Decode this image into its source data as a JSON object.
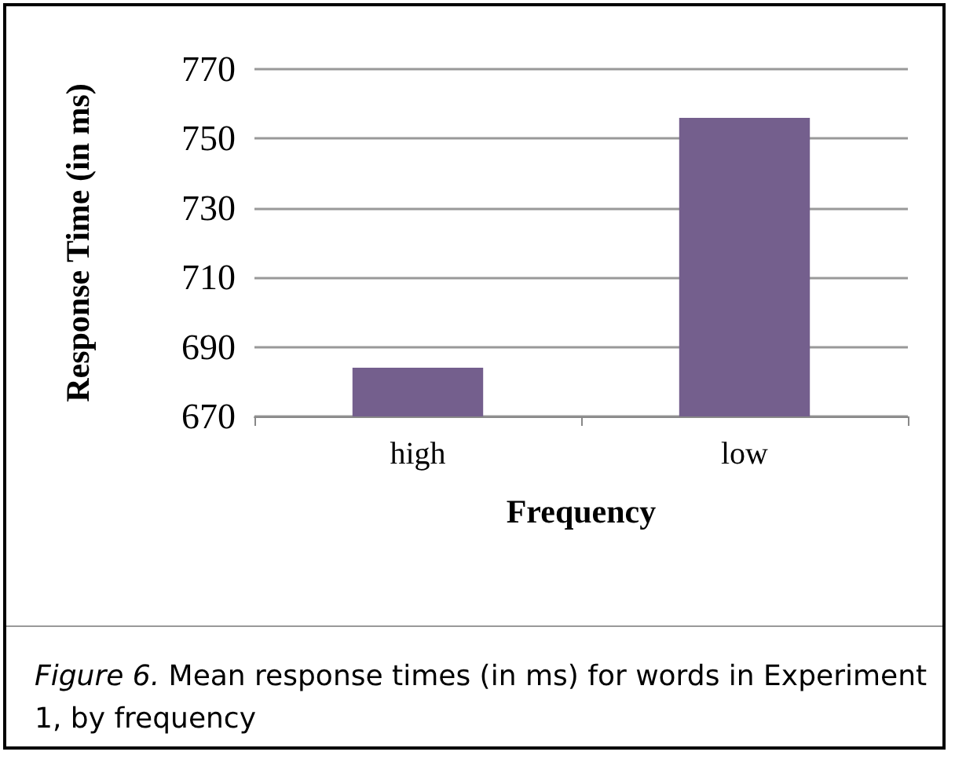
{
  "chart_data": {
    "type": "bar",
    "xlabel": "Frequency",
    "ylabel": "Response Time (in ms)",
    "categories": [
      "high",
      "low"
    ],
    "values": [
      684,
      756
    ],
    "color": "#745f8d",
    "ylim": [
      670,
      770
    ],
    "yticks": [
      670,
      690,
      710,
      730,
      750,
      770
    ],
    "grid": "y",
    "annotations": [
      "Figure 6. Mean response times (in ms) for words in Experiment 1, by frequency"
    ]
  }
}
